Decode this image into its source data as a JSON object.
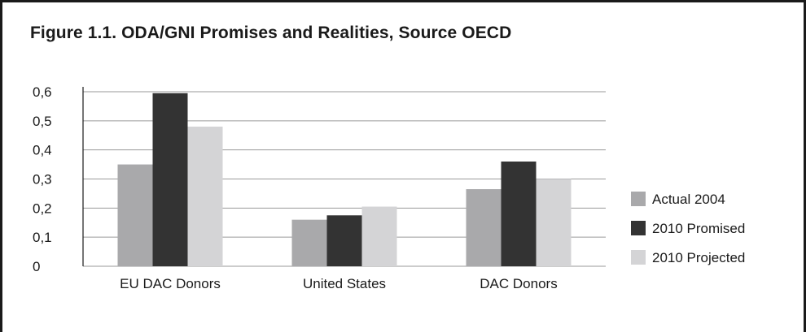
{
  "chart_data": {
    "type": "bar",
    "title": "Figure 1.1. ODA/GNI Promises and Realities, Source OECD",
    "categories": [
      "EU DAC Donors",
      "United States",
      "DAC Donors"
    ],
    "series": [
      {
        "name": "Actual 2004",
        "values": [
          0.35,
          0.16,
          0.265
        ],
        "color": "#a9a9ab"
      },
      {
        "name": "2010 Promised",
        "values": [
          0.595,
          0.175,
          0.36
        ],
        "color": "#333333"
      },
      {
        "name": "2010 Projected",
        "values": [
          0.48,
          0.205,
          0.3
        ],
        "color": "#d4d4d6"
      }
    ],
    "yticks": [
      "0",
      "0,1",
      "0,2",
      "0,3",
      "0,4",
      "0,5",
      "0,6"
    ],
    "ylim": [
      0,
      0.6
    ],
    "grid": true,
    "legend_position": "right"
  }
}
